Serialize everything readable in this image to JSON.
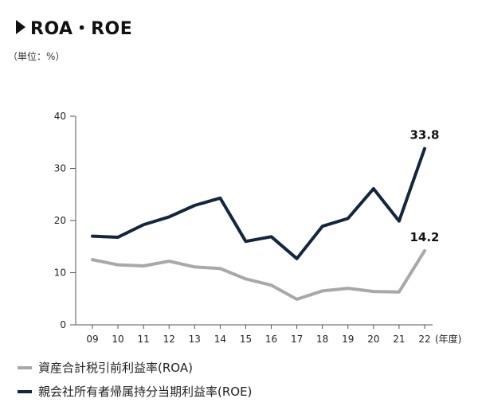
{
  "header": {
    "title": "ROA・ROE",
    "unit": "（単位：%）"
  },
  "colors": {
    "roa": "#a8a8a8",
    "roe": "#13263d",
    "axis": "#555555"
  },
  "chart_data": {
    "type": "line",
    "categories": [
      "09",
      "10",
      "11",
      "12",
      "13",
      "14",
      "15",
      "16",
      "17",
      "18",
      "19",
      "20",
      "21",
      "22"
    ],
    "x_unit_label": "(年度)",
    "ylim": [
      0,
      40
    ],
    "yticks": [
      0,
      10,
      20,
      30,
      40
    ],
    "grid": false,
    "legend_position": "bottom",
    "series": [
      {
        "key": "roa",
        "name": "資産合計税引前利益率(ROA)",
        "values": [
          12.5,
          11.5,
          11.3,
          12.2,
          11.1,
          10.8,
          8.8,
          7.6,
          4.9,
          6.5,
          7.0,
          6.4,
          6.3,
          14.2
        ]
      },
      {
        "key": "roe",
        "name": "親会社所有者帰属持分当期利益率(ROE)",
        "values": [
          17.0,
          16.8,
          19.2,
          20.7,
          22.9,
          24.3,
          16.0,
          16.9,
          12.7,
          18.9,
          20.4,
          26.1,
          19.9,
          33.8
        ]
      }
    ],
    "annotations": [
      {
        "series": "roe",
        "index": 13,
        "text": "33.8"
      },
      {
        "series": "roa",
        "index": 13,
        "text": "14.2"
      }
    ]
  }
}
